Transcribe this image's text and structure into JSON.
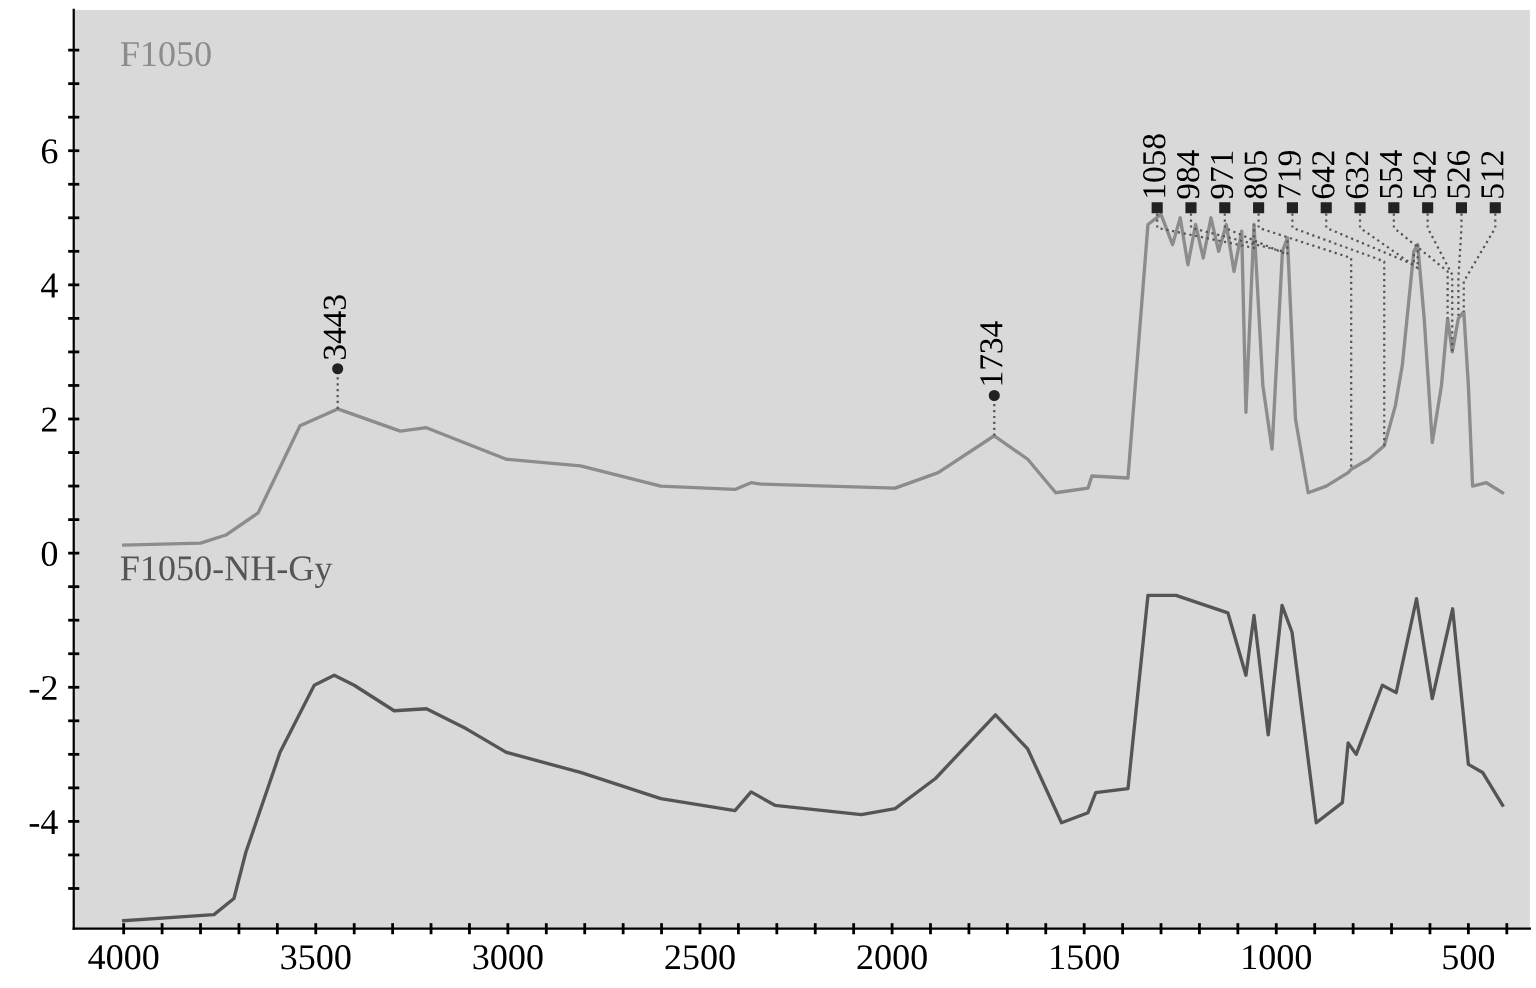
{
  "chart_data": {
    "type": "line",
    "xlim": [
      4130,
      340
    ],
    "ylim": [
      -5.6,
      8.1
    ],
    "xticks": [
      4000,
      {
        "value": 3900,
        "label": null
      },
      {
        "value": 3800,
        "label": null
      },
      {
        "value": 3700,
        "label": null
      },
      {
        "value": 3600,
        "label": null
      },
      3500,
      {
        "value": 3400,
        "label": null
      },
      {
        "value": 3300,
        "label": null
      },
      {
        "value": 3200,
        "label": null
      },
      {
        "value": 3100,
        "label": null
      },
      3000,
      {
        "value": 2900,
        "label": null
      },
      {
        "value": 2800,
        "label": null
      },
      {
        "value": 2700,
        "label": null
      },
      {
        "value": 2600,
        "label": null
      },
      2500,
      {
        "value": 2400,
        "label": null
      },
      {
        "value": 2300,
        "label": null
      },
      {
        "value": 2200,
        "label": null
      },
      {
        "value": 2100,
        "label": null
      },
      2000,
      {
        "value": 1900,
        "label": null
      },
      {
        "value": 1800,
        "label": null
      },
      {
        "value": 1700,
        "label": null
      },
      {
        "value": 1600,
        "label": null
      },
      1500,
      {
        "value": 1400,
        "label": null
      },
      {
        "value": 1300,
        "label": null
      },
      {
        "value": 1200,
        "label": null
      },
      {
        "value": 1100,
        "label": null
      },
      1000,
      {
        "value": 900,
        "label": null
      },
      {
        "value": 800,
        "label": null
      },
      {
        "value": 700,
        "label": null
      },
      {
        "value": 600,
        "label": null
      },
      500,
      {
        "value": 400,
        "label": null
      }
    ],
    "yticks": [
      {
        "value": -5,
        "label": null
      },
      {
        "value": -4.5,
        "label": null
      },
      -4,
      {
        "value": -3.5,
        "label": null
      },
      {
        "value": -3,
        "label": null
      },
      {
        "value": -2.5,
        "label": null
      },
      -2,
      {
        "value": -1.5,
        "label": null
      },
      {
        "value": -1,
        "label": null
      },
      {
        "value": -0.5,
        "label": null
      },
      0,
      {
        "value": 0.5,
        "label": null
      },
      {
        "value": 1,
        "label": null
      },
      {
        "value": 1.5,
        "label": null
      },
      2,
      {
        "value": 2.5,
        "label": null
      },
      {
        "value": 3,
        "label": null
      },
      {
        "value": 3.5,
        "label": null
      },
      4,
      {
        "value": 4.5,
        "label": null
      },
      {
        "value": 5,
        "label": null
      },
      {
        "value": 5.5,
        "label": null
      },
      6,
      {
        "value": 6.5,
        "label": null
      },
      {
        "value": 7,
        "label": null
      },
      {
        "value": 7.5,
        "label": null
      }
    ],
    "grid": false,
    "legend": false,
    "marker": "none",
    "line_style": "solid",
    "series": [
      {
        "name": "F1050",
        "color": "#8c8c8c",
        "x": [
          4000,
          3800,
          3734,
          3650,
          3541,
          3443,
          3280,
          3212,
          3004,
          2811,
          2602,
          2409,
          2367,
          2341,
          1992,
          1880,
          1734,
          1647,
          1574,
          1490,
          1480,
          1386,
          1334,
          1300,
          1270,
          1250,
          1230,
          1210,
          1190,
          1170,
          1150,
          1130,
          1110,
          1090,
          1079,
          1058,
          1035,
          1011,
          984,
          971,
          950,
          917,
          870,
          813,
          805,
          760,
          719,
          690,
          672,
          642,
          632,
          615,
          594,
          570,
          554,
          542,
          526,
          512,
          500,
          489,
          453,
          411
        ],
        "values": [
          0.12,
          0.15,
          0.27,
          0.6,
          1.9,
          2.15,
          1.82,
          1.87,
          1.4,
          1.3,
          1.0,
          0.95,
          1.05,
          1.03,
          0.97,
          1.2,
          1.75,
          1.4,
          0.9,
          0.97,
          1.15,
          1.12,
          4.9,
          5.05,
          4.6,
          5.0,
          4.3,
          4.9,
          4.4,
          5.0,
          4.5,
          4.9,
          4.2,
          4.8,
          2.1,
          4.9,
          2.5,
          1.55,
          4.5,
          4.7,
          2.0,
          0.9,
          1.0,
          1.2,
          1.25,
          1.4,
          1.6,
          2.2,
          2.8,
          4.5,
          4.6,
          3.5,
          1.65,
          2.5,
          3.5,
          3.0,
          3.5,
          3.6,
          2.5,
          1.0,
          1.05,
          0.9
        ]
      },
      {
        "name": "F1050-NH-Gy",
        "color": "#555555",
        "x": [
          4000,
          3765,
          3713,
          3682,
          3593,
          3504,
          3452,
          3400,
          3296,
          3212,
          3108,
          3004,
          2811,
          2602,
          2409,
          2367,
          2305,
          2080,
          1992,
          1887,
          1731,
          1647,
          1559,
          1490,
          1470,
          1386,
          1334,
          1261,
          1126,
          1079,
          1058,
          1021,
          985,
          959,
          896,
          828,
          813,
          792,
          724,
          688,
          635,
          594,
          541,
          500,
          463,
          411
        ],
        "values": [
          -5.48,
          -5.39,
          -5.15,
          -4.46,
          -2.97,
          -1.97,
          -1.82,
          -1.97,
          -2.35,
          -2.32,
          -2.62,
          -2.97,
          -3.27,
          -3.66,
          -3.84,
          -3.56,
          -3.76,
          -3.9,
          -3.81,
          -3.36,
          -2.41,
          -2.92,
          -4.02,
          -3.87,
          -3.57,
          -3.51,
          -0.63,
          -0.63,
          -0.89,
          -1.82,
          -0.93,
          -2.71,
          -0.78,
          -1.18,
          -4.02,
          -3.72,
          -2.83,
          -3.0,
          -1.97,
          -2.08,
          -0.68,
          -2.17,
          -0.83,
          -3.15,
          -3.27,
          -3.76
        ]
      }
    ],
    "annotations": [
      {
        "text": "3443",
        "x": 3443,
        "y": 2.15
      },
      {
        "text": "1734",
        "x": 1734,
        "y": 1.75
      },
      {
        "text": "1058",
        "x": 1058,
        "y": 4.9
      },
      {
        "text": "984",
        "x": 984,
        "y": 4.5
      },
      {
        "text": "971",
        "x": 971,
        "y": 4.7
      },
      {
        "text": "805",
        "x": 805,
        "y": 1.25
      },
      {
        "text": "719",
        "x": 719,
        "y": 1.6
      },
      {
        "text": "642",
        "x": 642,
        "y": 4.5
      },
      {
        "text": "632",
        "x": 632,
        "y": 4.6
      },
      {
        "text": "554",
        "x": 554,
        "y": 3.5
      },
      {
        "text": "542",
        "x": 542,
        "y": 3.0
      },
      {
        "text": "526",
        "x": 526,
        "y": 3.5
      },
      {
        "text": "512",
        "x": 512,
        "y": 3.6
      }
    ]
  }
}
